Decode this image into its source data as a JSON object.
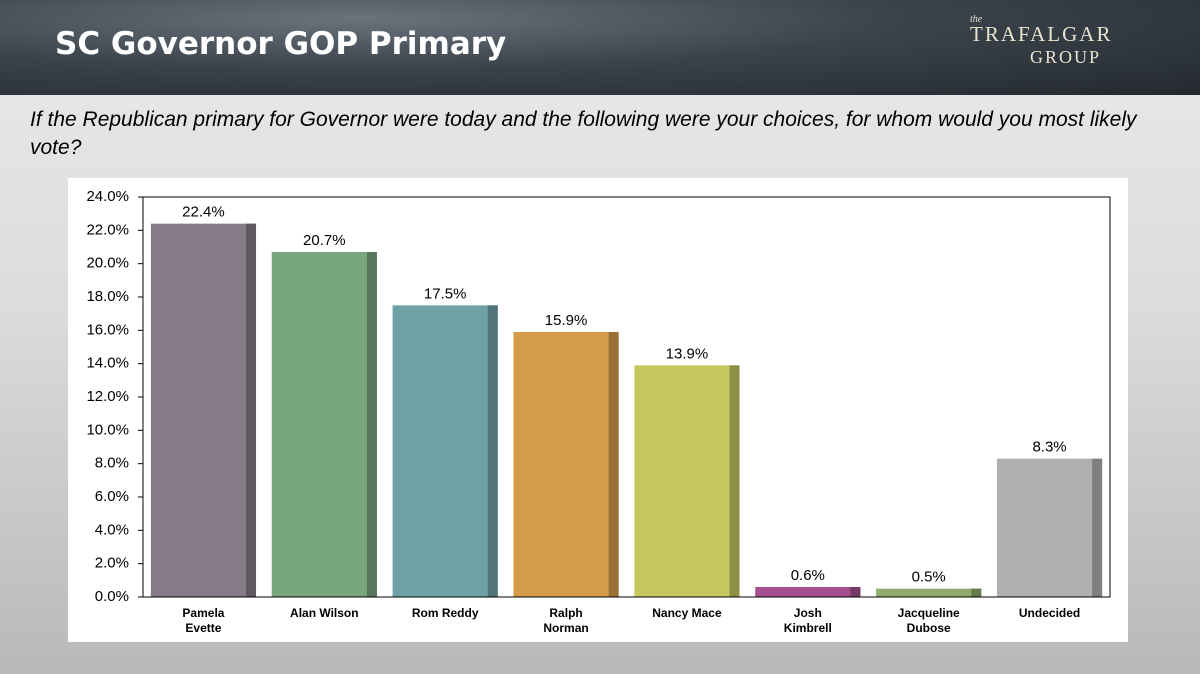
{
  "header": {
    "logo": [
      "the",
      "TRAFALGAR",
      "GROUP"
    ]
  },
  "chart_data": {
    "type": "bar",
    "title": "SC Governor GOP Primary",
    "subtitle": "If the Republican primary for Governor were today and the following were your choices, for whom would you most likely vote?",
    "categories": [
      "Pamela\nEvette",
      "Alan Wilson",
      "Rom Reddy",
      "Ralph\nNorman",
      "Nancy Mace",
      "Josh\nKimbrell",
      "Jacqueline\nDubose",
      "Undecided"
    ],
    "values": [
      22.4,
      20.7,
      17.5,
      15.9,
      13.9,
      0.6,
      0.5,
      8.3
    ],
    "value_labels": [
      "22.4%",
      "20.7%",
      "17.5%",
      "15.9%",
      "13.9%",
      "0.6%",
      "0.5%",
      "8.3%"
    ],
    "colors": [
      "#857c88",
      "#77a57c",
      "#6fa2a6",
      "#d49b4a",
      "#c6c75e",
      "#a4508f",
      "#8fac6c",
      "#b0b0b0"
    ],
    "ylim": [
      0,
      24
    ],
    "yticks": [
      {
        "value": 0,
        "label": "0.0%"
      },
      {
        "value": 2,
        "label": "2.0%"
      },
      {
        "value": 4,
        "label": "4.0%"
      },
      {
        "value": 6,
        "label": "6.0%"
      },
      {
        "value": 8,
        "label": "8.0%"
      },
      {
        "value": 10,
        "label": "10.0%"
      },
      {
        "value": 12,
        "label": "12.0%"
      },
      {
        "value": 14,
        "label": "14.0%"
      },
      {
        "value": 16,
        "label": "16.0%"
      },
      {
        "value": 18,
        "label": "18.0%"
      },
      {
        "value": 20,
        "label": "20.0%"
      },
      {
        "value": 22,
        "label": "22.0%"
      },
      {
        "value": 24,
        "label": "24.0%"
      }
    ]
  }
}
